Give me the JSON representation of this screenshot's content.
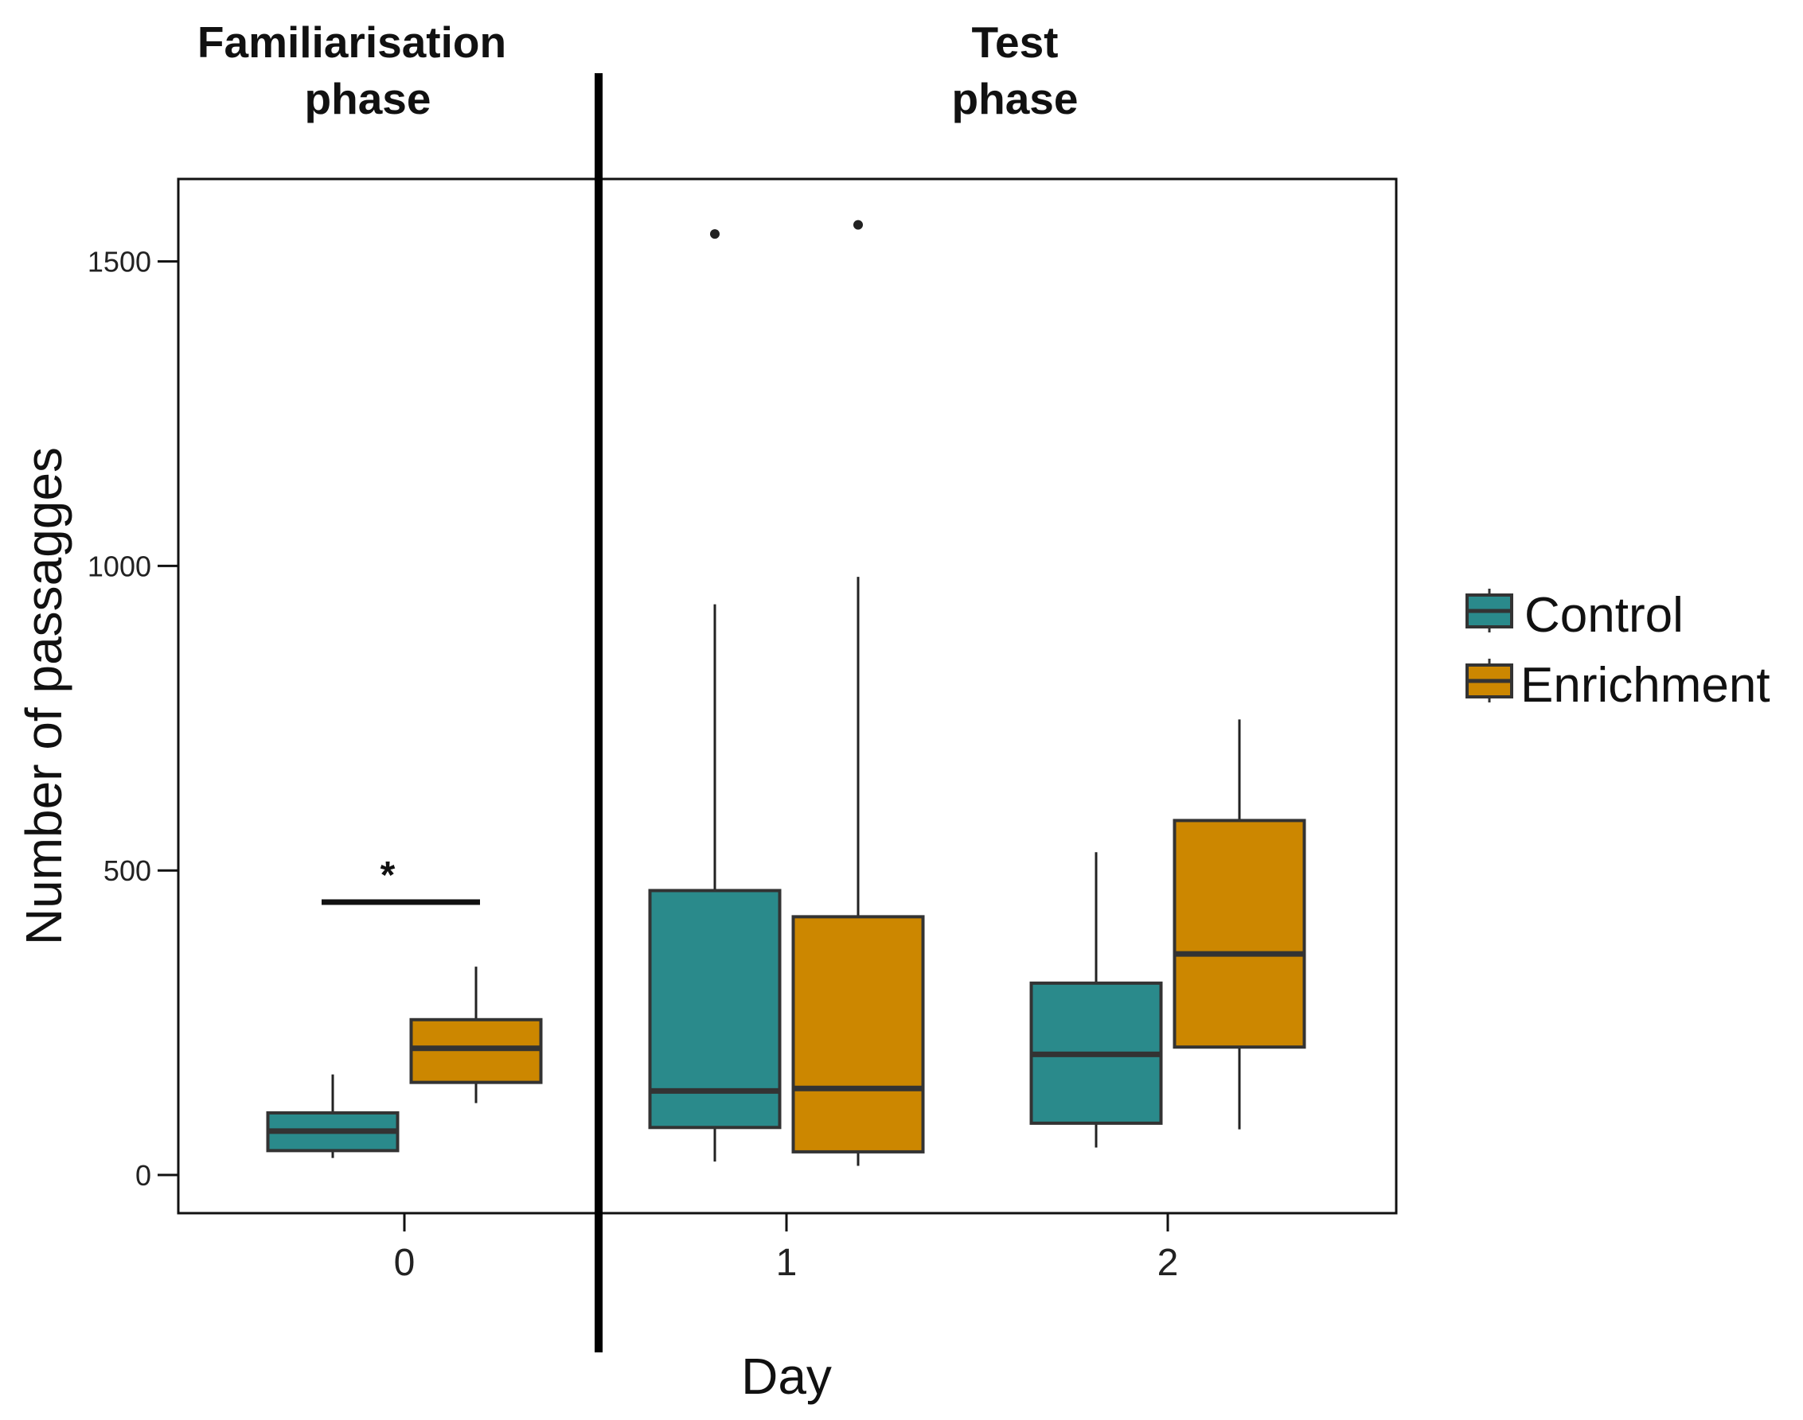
{
  "chart_data": {
    "type": "boxplot",
    "xlabel": "Day",
    "ylabel": "Number of passagges",
    "categories": [
      "0",
      "1",
      "2"
    ],
    "yticks": [
      "0",
      "500",
      "1000",
      "1500"
    ],
    "ytick_values": [
      0,
      500,
      1000,
      1500
    ],
    "ylim": [
      -60,
      1640
    ],
    "phases": [
      {
        "label_line1": "Familiarisation",
        "label_line2": "phase",
        "days": [
          "0"
        ]
      },
      {
        "label_line1": "Test",
        "label_line2": "phase",
        "days": [
          "1",
          "2"
        ]
      }
    ],
    "series": [
      {
        "name": "Control",
        "color": "#2a8a8b",
        "boxes": [
          {
            "day": "0",
            "whisker_low": 28,
            "q1": 40,
            "median": 72,
            "q3": 102,
            "whisker_high": 165,
            "outliers": []
          },
          {
            "day": "1",
            "whisker_low": 22,
            "q1": 78,
            "median": 138,
            "q3": 467,
            "whisker_high": 937,
            "outliers": [
              1545
            ]
          },
          {
            "day": "2",
            "whisker_low": 45,
            "q1": 85,
            "median": 198,
            "q3": 315,
            "whisker_high": 530,
            "outliers": []
          }
        ]
      },
      {
        "name": "Enrichment",
        "color": "#cc8700",
        "boxes": [
          {
            "day": "0",
            "whisker_low": 118,
            "q1": 152,
            "median": 208,
            "q3": 255,
            "whisker_high": 342,
            "outliers": []
          },
          {
            "day": "1",
            "whisker_low": 15,
            "q1": 38,
            "median": 142,
            "q3": 424,
            "whisker_high": 982,
            "outliers": [
              1560
            ]
          },
          {
            "day": "2",
            "whisker_low": 75,
            "q1": 210,
            "median": 363,
            "q3": 582,
            "whisker_high": 748,
            "outliers": []
          }
        ]
      }
    ],
    "annotations": [
      {
        "text": "*",
        "day": "0",
        "y": 448,
        "meaning": "significant difference between Control and Enrichment"
      }
    ],
    "legend": {
      "position": "right",
      "entries": [
        "Control",
        "Enrichment"
      ]
    }
  }
}
